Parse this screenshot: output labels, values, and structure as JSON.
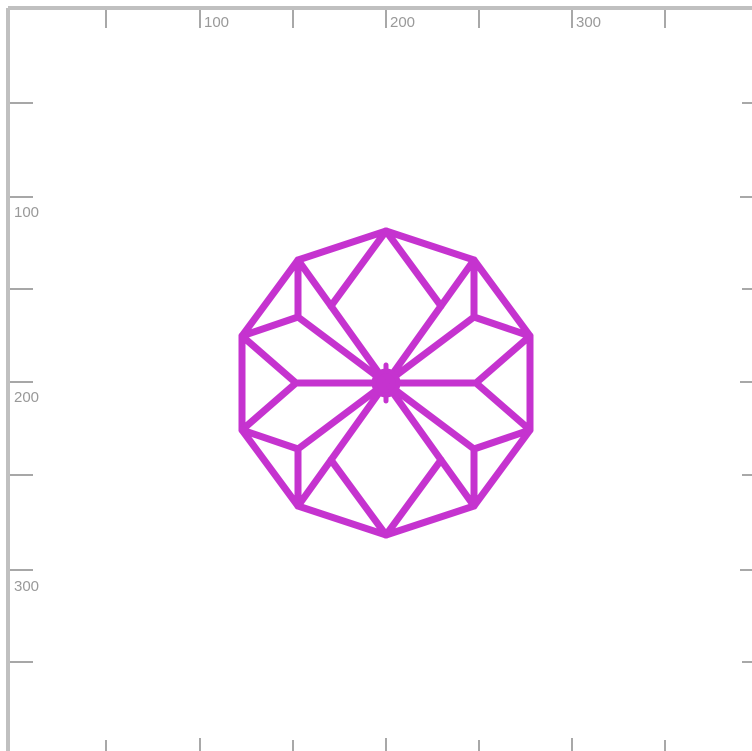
{
  "canvas": {
    "background": "#ffffff",
    "frame_color": "#c0c0c0",
    "tick_color": "#8a8a8a",
    "label_color": "#999999"
  },
  "rulers": {
    "x_labels": [
      "100",
      "200",
      "300"
    ],
    "y_labels": [
      "100",
      "200",
      "300"
    ]
  },
  "shape": {
    "name": "rhombic star polygon",
    "stroke_color": "#c533cf"
  }
}
